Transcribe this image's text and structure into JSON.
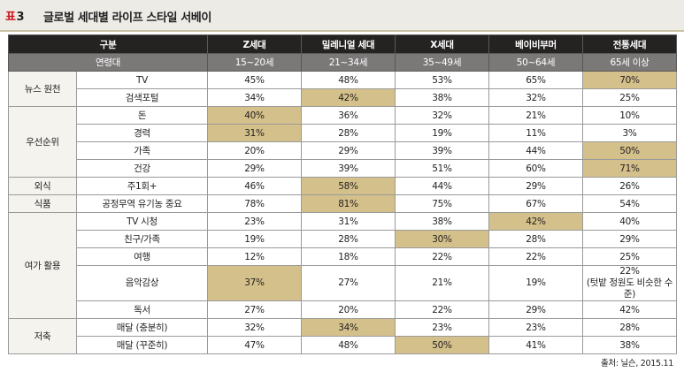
{
  "header": {
    "label": "표",
    "number": "3",
    "title": "글로벌 세대별 라이프 스타일 서베이"
  },
  "table": {
    "col_header": "구분",
    "generations": [
      "Z세대",
      "밀레니얼 세대",
      "X세대",
      "베이비부머",
      "전통세대"
    ],
    "age_label": "연령대",
    "ages": [
      "15~20세",
      "21~34세",
      "35~49세",
      "50~64세",
      "65세 이상"
    ],
    "groups": [
      {
        "category": "뉴스 원천",
        "rows": [
          {
            "label": "TV",
            "values": [
              "45%",
              "48%",
              "53%",
              "65%",
              "70%"
            ],
            "highlight": 4
          },
          {
            "label": "검색포털",
            "values": [
              "34%",
              "42%",
              "38%",
              "32%",
              "25%"
            ],
            "highlight": 1
          }
        ]
      },
      {
        "category": "우선순위",
        "rows": [
          {
            "label": "돈",
            "values": [
              "40%",
              "36%",
              "32%",
              "21%",
              "10%"
            ],
            "highlight": 0
          },
          {
            "label": "경력",
            "values": [
              "31%",
              "28%",
              "19%",
              "11%",
              "3%"
            ],
            "highlight": 0
          },
          {
            "label": "가족",
            "values": [
              "20%",
              "29%",
              "39%",
              "44%",
              "50%"
            ],
            "highlight": 4
          },
          {
            "label": "건강",
            "values": [
              "29%",
              "39%",
              "51%",
              "60%",
              "71%"
            ],
            "highlight": 4
          }
        ]
      },
      {
        "category": "외식",
        "rows": [
          {
            "label": "주1회+",
            "values": [
              "46%",
              "58%",
              "44%",
              "29%",
              "26%"
            ],
            "highlight": 1
          }
        ]
      },
      {
        "category": "식품",
        "rows": [
          {
            "label": "공정무역 유기농 중요",
            "values": [
              "78%",
              "81%",
              "75%",
              "67%",
              "54%"
            ],
            "highlight": 1
          }
        ]
      },
      {
        "category": "여가 활용",
        "rows": [
          {
            "label": "TV 시청",
            "values": [
              "23%",
              "31%",
              "38%",
              "42%",
              "40%"
            ],
            "highlight": 3
          },
          {
            "label": "친구/가족",
            "values": [
              "19%",
              "28%",
              "30%",
              "28%",
              "29%"
            ],
            "highlight": 2
          },
          {
            "label": "여행",
            "values": [
              "12%",
              "18%",
              "22%",
              "22%",
              "25%"
            ],
            "highlight": -1
          },
          {
            "label": "음악감상",
            "values": [
              "37%",
              "27%",
              "21%",
              "19%",
              "22%"
            ],
            "highlight": 0,
            "note": "(텃밭 정원도 비슷한 수준)"
          },
          {
            "label": "독서",
            "values": [
              "27%",
              "20%",
              "22%",
              "29%",
              "42%"
            ],
            "highlight": -1
          }
        ]
      },
      {
        "category": "저축",
        "rows": [
          {
            "label": "매달 (충분히)",
            "values": [
              "32%",
              "34%",
              "23%",
              "23%",
              "28%"
            ],
            "highlight": 1
          },
          {
            "label": "매달 (꾸준히)",
            "values": [
              "47%",
              "48%",
              "50%",
              "41%",
              "38%"
            ],
            "highlight": 2
          }
        ]
      }
    ]
  },
  "source": "출처: 닐슨, 2015.11",
  "colors": {
    "highlight": "#d4c08a",
    "header_bg": "#252322",
    "subheader_bg": "#7b7878",
    "badge": "#c8121b"
  }
}
